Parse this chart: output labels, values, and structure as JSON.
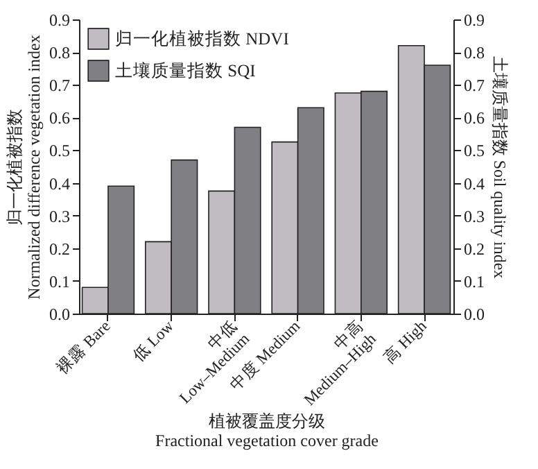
{
  "chart_data": {
    "type": "bar",
    "xlabel": "植被覆盖度分级\nFractional vegetation cover grade",
    "ylabel": "归一化植被指数\nNormalized difference vegetation index",
    "y2label": "土壤质量指数 Soil quality index",
    "categories": [
      "裸露 Bare",
      "低 Low",
      "中低\nLow–Medium",
      "中度 Medium",
      "中高\nMedium–High",
      "高 High"
    ],
    "series": [
      {
        "name": "归一化植被指数 NDVI",
        "color": "#c0bcc2",
        "values": [
          0.08,
          0.22,
          0.375,
          0.525,
          0.675,
          0.82
        ]
      },
      {
        "name": "土壤质量指数 SQI",
        "color": "#808084",
        "axis": "y2",
        "values": [
          0.39,
          0.47,
          0.57,
          0.63,
          0.68,
          0.76
        ]
      }
    ],
    "ylim": [
      0,
      0.9
    ],
    "yticks": [
      {
        "value": 0,
        "label": "0.0"
      },
      0.1,
      0.2,
      0.3,
      0.4,
      0.5,
      0.6,
      0.7,
      0.8,
      0.9
    ],
    "y2lim": [
      0,
      0.9
    ],
    "y2ticks": [
      {
        "value": 0,
        "label": "0.0"
      },
      0.1,
      0.2,
      0.3,
      0.4,
      0.5,
      0.6,
      0.7,
      0.8,
      0.9
    ],
    "grid": false,
    "legend": "top left"
  }
}
